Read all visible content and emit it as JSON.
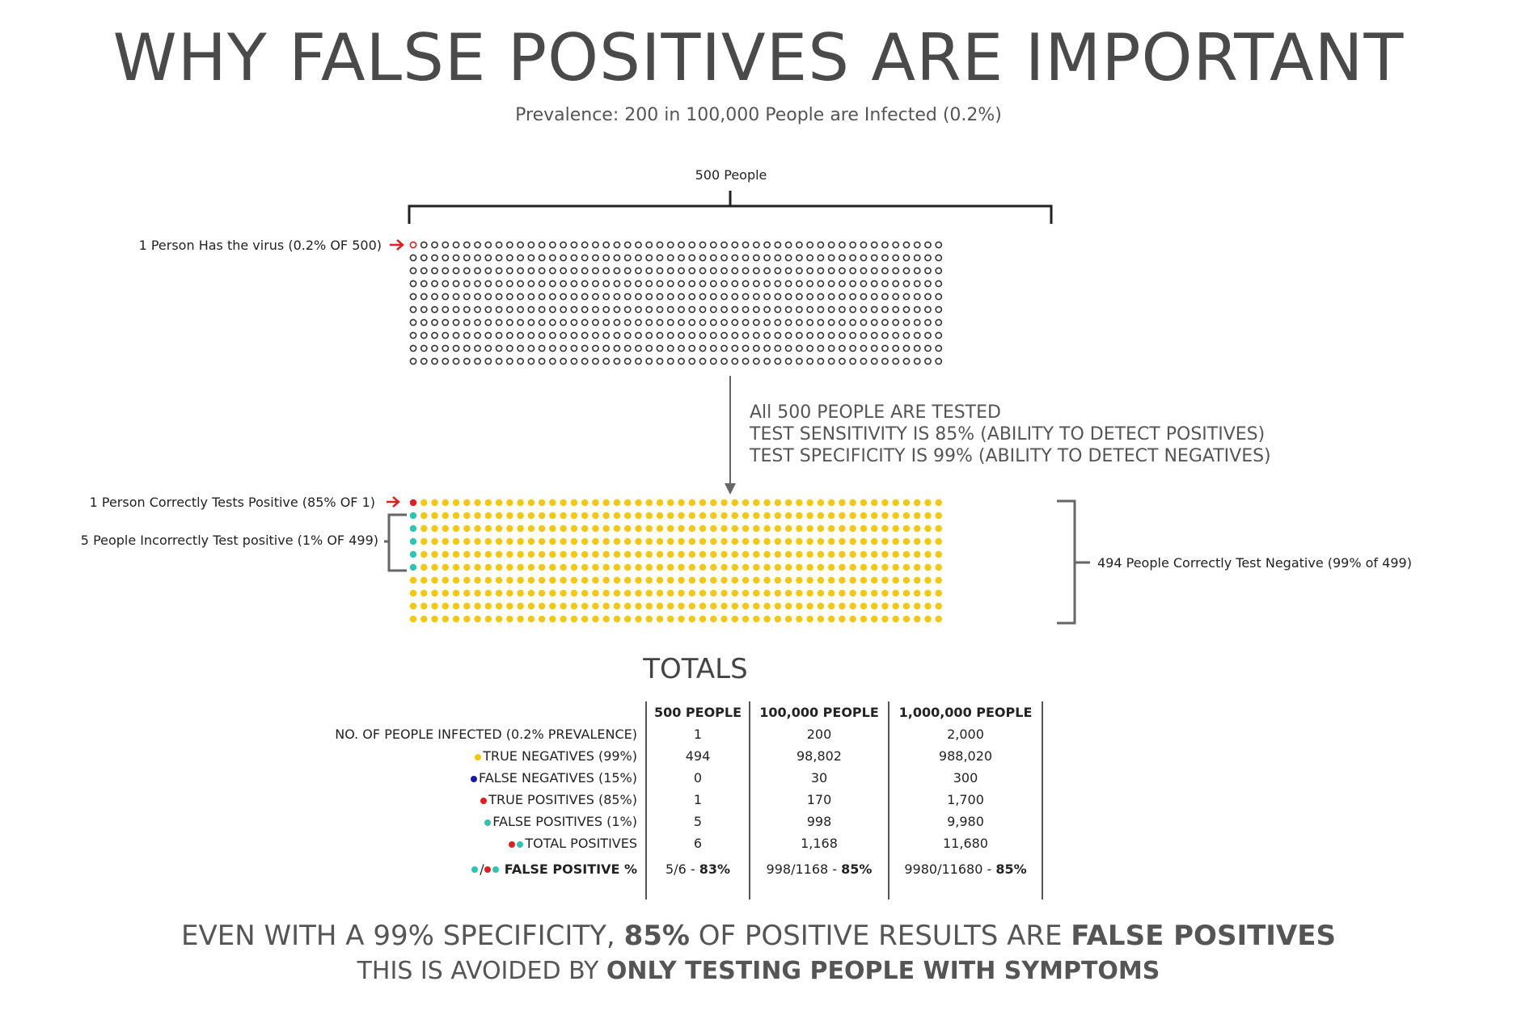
{
  "title": "WHY FALSE POSITIVES ARE IMPORTANT",
  "subtitle": "Prevalence: 200 in 100,000 People are Infected (0.2%)",
  "population_label": "500 People",
  "infected_label": "1 Person Has the virus (0.2% OF 500)",
  "test_steps": [
    "All 500 PEOPLE ARE TESTED",
    "TEST SENSITIVITY IS 85% (ABILITY TO DETECT POSITIVES)",
    "TEST SPECIFICITY IS 99% (ABILITY TO DETECT NEGATIVES)"
  ],
  "true_positive_label": "1 Person Correctly Tests Positive (85% OF 1)",
  "false_positive_label": "5 People Incorrectly Test positive (1% OF 499)",
  "true_negative_label": "494 People Correctly Test Negative (99% of 499)",
  "grid": {
    "rows": 10,
    "cols": 50,
    "infected": 1,
    "true_positives": 1,
    "false_positives": 5,
    "true_negatives": 494
  },
  "colors": {
    "outline": "#333333",
    "infected": "#e02020",
    "true_negative": "#f2c811",
    "false_negative": "#1a1aa8",
    "true_positive": "#e02020",
    "false_positive": "#2ec4b0",
    "arrow": "#e02020",
    "bracket": "#666666"
  },
  "totals": {
    "title": "TOTALS",
    "headers": [
      "500 PEOPLE",
      "100,000 PEOPLE",
      "1,000,000 PEOPLE"
    ],
    "rows": [
      {
        "label": "NO. OF PEOPLE INFECTED (0.2% PREVALENCE)",
        "values": [
          "1",
          "200",
          "2,000"
        ]
      },
      {
        "label": "TRUE NEGATIVES (99%)",
        "values": [
          "494",
          "98,802",
          "988,020"
        ]
      },
      {
        "label": "FALSE NEGATIVES (15%)",
        "values": [
          "0",
          "30",
          "300"
        ]
      },
      {
        "label": "TRUE POSITIVES (85%)",
        "values": [
          "1",
          "170",
          "1,700"
        ]
      },
      {
        "label": "FALSE POSITIVES (1%)",
        "values": [
          "5",
          "998",
          "9,980"
        ]
      },
      {
        "label": "TOTAL POSITIVES",
        "values": [
          "6",
          "1,168",
          "11,680"
        ]
      }
    ],
    "fp_row": {
      "label": "FALSE POSITIVE %",
      "slash": "/",
      "ratios": [
        "5/6",
        "998/1168",
        "9980/11680"
      ],
      "dash": " - ",
      "percents": [
        "83%",
        "85%",
        "85%"
      ]
    }
  },
  "conclusion": {
    "line1_a": "EVEN WITH A 99% SPECIFICITY, ",
    "line1_b": "85%",
    "line1_c": " OF POSITIVE RESULTS ARE ",
    "line1_d": "FALSE POSITIVES",
    "line2_a": "THIS IS AVOIDED BY ",
    "line2_b": "ONLY TESTING PEOPLE WITH SYMPTOMS"
  }
}
